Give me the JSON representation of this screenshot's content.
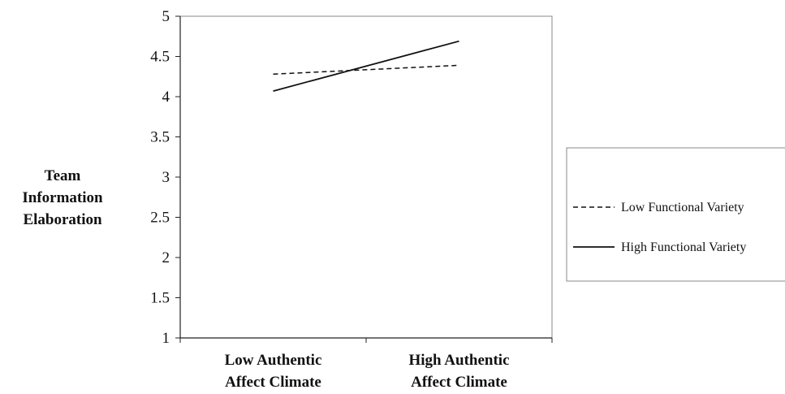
{
  "chart_data": {
    "type": "line",
    "title": "",
    "ylabel": [
      "Team",
      "Information",
      "Elaboration"
    ],
    "xlabel": "",
    "categories": [
      [
        "Low Authentic",
        "Affect Climate"
      ],
      [
        "High Authentic",
        "Affect Climate"
      ]
    ],
    "ylim": [
      1,
      5
    ],
    "yticks": [
      "1",
      "1.5",
      "2",
      "2.5",
      "3",
      "3.5",
      "4",
      "4.5",
      "5"
    ],
    "grid": false,
    "legend_placement": "right",
    "series": [
      {
        "name": "Low Functional Variety",
        "style": "dashed",
        "color": "#111111",
        "values": [
          4.28,
          4.39
        ]
      },
      {
        "name": "High Functional Variety",
        "style": "solid",
        "color": "#111111",
        "values": [
          4.07,
          4.69
        ]
      }
    ]
  }
}
